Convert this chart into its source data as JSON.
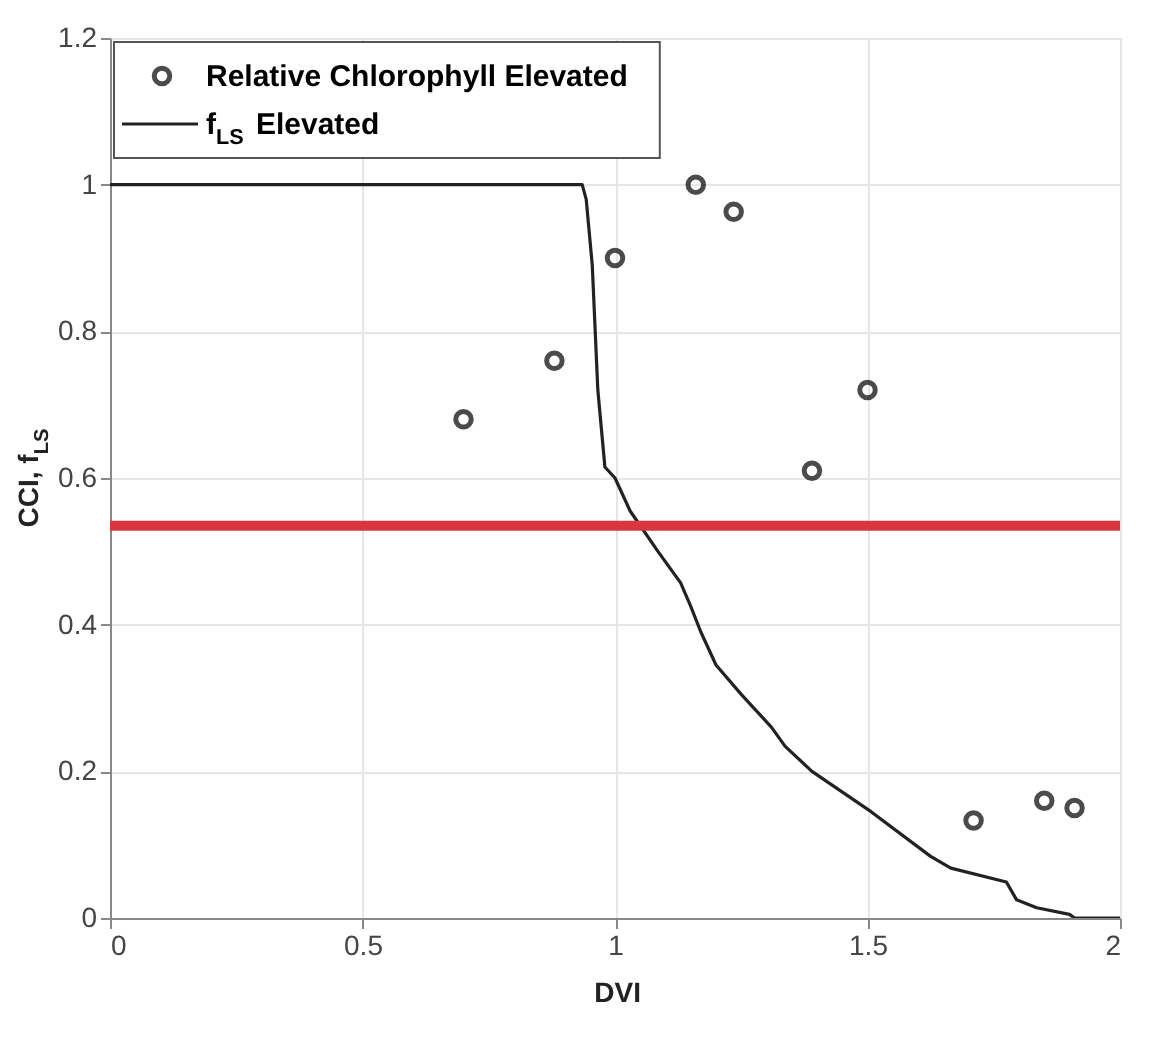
{
  "chart_data": {
    "type": "scatter",
    "xlabel": "DVI",
    "ylabel": "CCI, f$_{LS}$",
    "xlim": [
      0,
      2
    ],
    "xticks": [
      0,
      0.5,
      1,
      1.5,
      2
    ],
    "ylim": [
      0,
      1.2
    ],
    "yticks": [
      0,
      0.2,
      0.4,
      0.6,
      0.8,
      1,
      1.2
    ],
    "grid": true,
    "legend": "top left",
    "series": [
      {
        "name": "Relative Chlorophyll Elevated",
        "marker": "circle",
        "color": "#000000",
        "x": [
          0.7,
          0.88,
          1.0,
          1.16,
          1.235,
          1.39,
          1.5,
          1.71,
          1.85,
          1.91
        ],
        "values": [
          0.68,
          0.76,
          0.9,
          1.0,
          0.963,
          0.61,
          0.72,
          0.133,
          0.16,
          0.15
        ]
      },
      {
        "name": "f$_{LS}$ Elevated",
        "type": "line",
        "marker": "none",
        "line_style": "solid",
        "color": "#222222",
        "x": [
          0,
          0.935,
          0.943,
          0.955,
          0.966,
          0.98,
          1.0,
          1.03,
          1.085,
          1.13,
          1.15,
          1.17,
          1.18,
          1.2,
          1.25,
          1.31,
          1.337,
          1.39,
          1.507,
          1.625,
          1.665,
          1.775,
          1.795,
          1.835,
          1.9,
          1.91,
          2.0
        ],
        "values": [
          1.0,
          1.0,
          0.98,
          0.89,
          0.72,
          0.615,
          0.6,
          0.555,
          0.5,
          0.457,
          0.425,
          0.39,
          0.375,
          0.345,
          0.305,
          0.26,
          0.234,
          0.2,
          0.145,
          0.084,
          0.068,
          0.049,
          0.025,
          0.014,
          0.005,
          0,
          0
        ]
      }
    ],
    "ref_lines": [
      {
        "axis": "y",
        "value": 0.535,
        "label": null,
        "color": "#d9363e",
        "line_style": "solid"
      }
    ]
  }
}
